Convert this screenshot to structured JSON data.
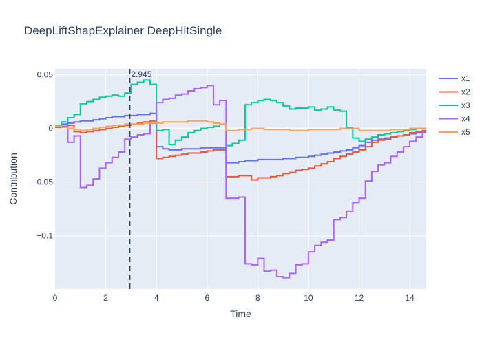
{
  "chart_data": {
    "type": "line",
    "line_shape": "step",
    "title": "DeepLiftShapExplainer DeepHitSingle",
    "xlabel": "Time",
    "ylabel": "Contribution",
    "xlim": [
      0,
      14.65
    ],
    "ylim": [
      -0.1495,
      0.0555
    ],
    "x_ticks": [
      0,
      2,
      4,
      6,
      8,
      10,
      12,
      14
    ],
    "y_ticks": [
      0.05,
      0,
      -0.05,
      -0.1
    ],
    "y_tick_labels": [
      "0.05",
      "0",
      "−0.05",
      "−0.1"
    ],
    "grid": true,
    "legend_position": "right",
    "vline": {
      "x": 2.945,
      "label": "2.945",
      "color": "#2a3f5f"
    },
    "x": [
      0,
      0.25,
      0.5,
      0.75,
      1,
      1.25,
      1.5,
      1.75,
      2,
      2.25,
      2.5,
      2.75,
      3,
      3.25,
      3.5,
      3.75,
      4,
      4.25,
      4.5,
      4.75,
      5,
      5.25,
      5.5,
      5.75,
      6,
      6.25,
      6.5,
      6.75,
      7,
      7.25,
      7.5,
      7.75,
      8,
      8.25,
      8.5,
      8.75,
      9,
      9.25,
      9.5,
      9.75,
      10,
      10.25,
      10.5,
      10.75,
      11,
      11.25,
      11.5,
      11.75,
      12,
      12.25,
      12.5,
      12.75,
      13,
      13.25,
      13.5,
      13.75,
      14,
      14.25,
      14.5
    ],
    "series": [
      {
        "name": "x1",
        "color": "#636efa",
        "values": [
          0.003,
          0.004,
          0.005,
          0.006,
          0.007,
          0.007,
          0.008,
          0.009,
          0.01,
          0.011,
          0.011,
          0.012,
          0.012,
          0.013,
          0.013,
          0.014,
          -0.017,
          -0.019,
          -0.02,
          -0.02,
          -0.019,
          -0.019,
          -0.019,
          -0.018,
          -0.018,
          -0.018,
          -0.018,
          -0.032,
          -0.032,
          -0.031,
          -0.03,
          -0.03,
          -0.029,
          -0.029,
          -0.029,
          -0.029,
          -0.028,
          -0.028,
          -0.027,
          -0.027,
          -0.026,
          -0.025,
          -0.024,
          -0.023,
          -0.022,
          -0.021,
          -0.02,
          -0.018,
          -0.016,
          -0.013,
          -0.011,
          -0.01,
          -0.009,
          -0.008,
          -0.007,
          -0.006,
          -0.005,
          -0.004,
          -0.003
        ]
      },
      {
        "name": "x2",
        "color": "#ef553b",
        "values": [
          0.001,
          0.002,
          0.003,
          -0.003,
          -0.004,
          -0.003,
          -0.002,
          -0.001,
          0.0,
          0.001,
          0.002,
          0.003,
          0.004,
          0.005,
          0.006,
          0.007,
          -0.028,
          -0.027,
          -0.026,
          -0.025,
          -0.024,
          -0.023,
          -0.023,
          -0.022,
          -0.021,
          -0.02,
          -0.02,
          -0.045,
          -0.045,
          -0.044,
          -0.044,
          -0.048,
          -0.046,
          -0.046,
          -0.045,
          -0.044,
          -0.042,
          -0.041,
          -0.039,
          -0.038,
          -0.037,
          -0.035,
          -0.033,
          -0.031,
          -0.028,
          -0.026,
          -0.024,
          -0.022,
          -0.02,
          -0.017,
          -0.013,
          -0.011,
          -0.01,
          -0.008,
          -0.007,
          -0.006,
          -0.004,
          -0.003,
          -0.002
        ]
      },
      {
        "name": "x3",
        "color": "#00cc96",
        "values": [
          0.003,
          0.006,
          0.01,
          0.013,
          0.023,
          0.025,
          0.027,
          0.029,
          0.03,
          0.031,
          0.03,
          0.033,
          0.041,
          0.043,
          0.045,
          0.041,
          -0.002,
          -0.001,
          -0.015,
          -0.011,
          -0.008,
          -0.004,
          -0.002,
          0.0,
          0.001,
          0.002,
          0.004,
          -0.016,
          -0.014,
          -0.011,
          0.022,
          0.024,
          0.026,
          0.027,
          0.026,
          0.024,
          0.021,
          0.018,
          0.019,
          0.019,
          0.02,
          0.017,
          0.018,
          0.02,
          0.017,
          0.016,
          0.001,
          -0.009,
          -0.012,
          -0.01,
          -0.008,
          -0.006,
          -0.005,
          -0.004,
          -0.003,
          -0.002,
          -0.001,
          0.0,
          0.0
        ]
      },
      {
        "name": "x4",
        "color": "#ab63fa",
        "values": [
          0.002,
          0.002,
          -0.013,
          -0.007,
          -0.055,
          -0.053,
          -0.047,
          -0.037,
          -0.032,
          -0.027,
          -0.022,
          -0.01,
          -0.008,
          -0.006,
          -0.005,
          0.005,
          0.024,
          0.027,
          0.028,
          0.031,
          0.032,
          0.035,
          0.037,
          0.038,
          0.04,
          0.022,
          0.026,
          -0.065,
          -0.065,
          -0.064,
          -0.126,
          -0.127,
          -0.121,
          -0.133,
          -0.132,
          -0.138,
          -0.139,
          -0.135,
          -0.127,
          -0.126,
          -0.115,
          -0.109,
          -0.106,
          -0.104,
          -0.085,
          -0.083,
          -0.077,
          -0.069,
          -0.065,
          -0.049,
          -0.04,
          -0.034,
          -0.032,
          -0.026,
          -0.022,
          -0.017,
          -0.012,
          -0.008,
          -0.004
        ]
      },
      {
        "name": "x5",
        "color": "#ffa15a",
        "values": [
          0.002,
          0.001,
          0.0,
          -0.001,
          -0.002,
          -0.001,
          0.0,
          0.001,
          0.002,
          0.003,
          0.003,
          0.004,
          0.004,
          0.004,
          0.005,
          0.005,
          0.005,
          0.006,
          0.006,
          0.006,
          0.006,
          0.007,
          0.007,
          0.007,
          0.006,
          0.005,
          0.004,
          -0.002,
          -0.002,
          -0.001,
          -0.001,
          0.0,
          0.0,
          -0.001,
          -0.001,
          -0.001,
          -0.001,
          -0.002,
          -0.002,
          -0.002,
          -0.001,
          -0.001,
          -0.001,
          -0.001,
          -0.001,
          0.0,
          0.0,
          0.0,
          -0.002,
          -0.002,
          -0.002,
          -0.002,
          -0.002,
          -0.001,
          -0.001,
          -0.001,
          0.0,
          0.0,
          0.0
        ]
      }
    ]
  }
}
